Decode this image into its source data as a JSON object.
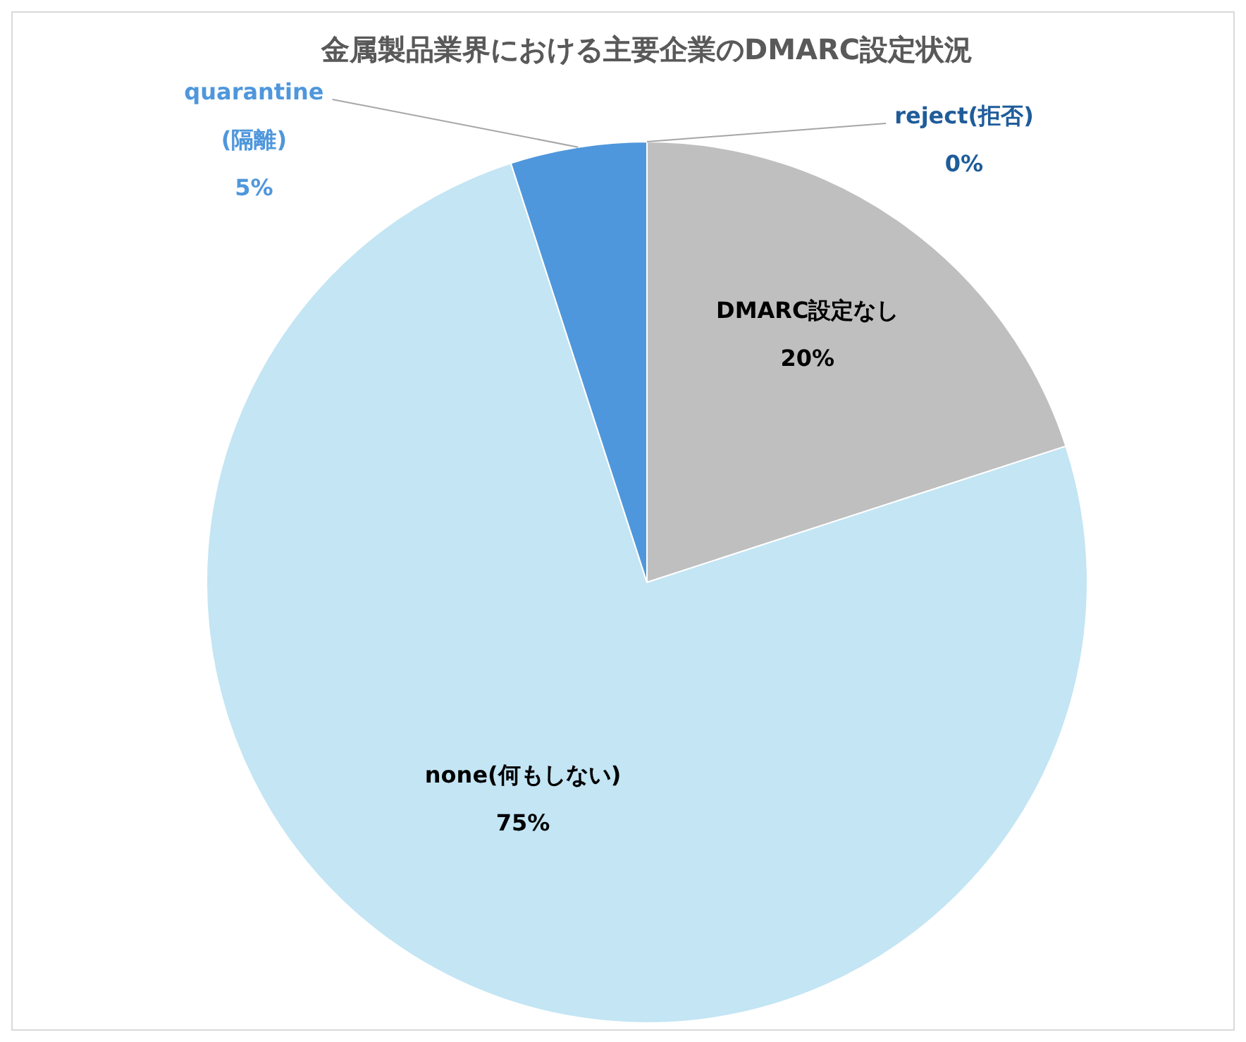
{
  "chart_data": {
    "type": "pie",
    "title": "金属製品業界における主要企業のDMARC設定状況",
    "categories": [
      "DMARC設定なし",
      "none(何もしない)",
      "quarantine(隔離)",
      "reject(拒否)"
    ],
    "values": [
      20,
      75,
      5,
      0
    ],
    "colors": [
      "#bfbfbf",
      "#c3e5f4",
      "#4f97dc",
      "#1f5c99"
    ],
    "value_labels": [
      "20%",
      "75%",
      "5%",
      "0%"
    ],
    "legend": false
  }
}
